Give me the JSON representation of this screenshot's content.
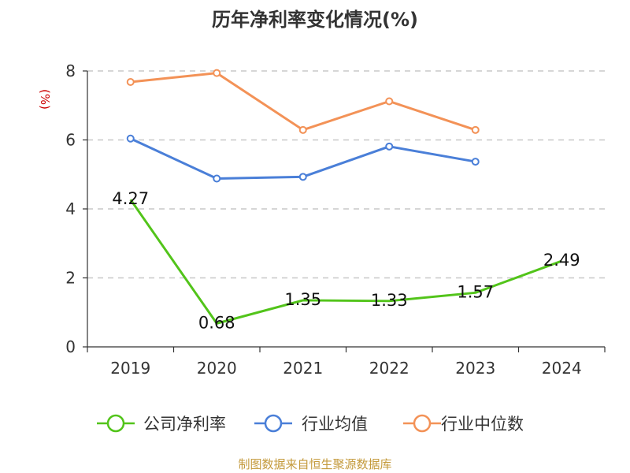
{
  "chart_data": {
    "type": "line",
    "title": "历年净利率变化情况(%)",
    "ylabel": "(%)",
    "xlabel": "",
    "ylim": [
      0,
      8
    ],
    "yticks": [
      0,
      2,
      4,
      6,
      8
    ],
    "grid": true,
    "legend_position": "bottom",
    "categories": [
      "2019",
      "2020",
      "2021",
      "2022",
      "2023",
      "2024"
    ],
    "series": [
      {
        "name": "公司净利率",
        "color": "#52c41a",
        "values": [
          4.27,
          0.68,
          1.35,
          1.33,
          1.57,
          2.49
        ],
        "labels": [
          "4.27",
          "0.68",
          "1.35",
          "1.33",
          "1.57",
          "2.49"
        ],
        "show_labels": true
      },
      {
        "name": "行业均值",
        "color": "#4a7fd8",
        "values": [
          6.04,
          4.88,
          4.93,
          5.81,
          5.37,
          null
        ],
        "show_labels": false
      },
      {
        "name": "行业中位数",
        "color": "#f39257",
        "values": [
          7.68,
          7.94,
          6.29,
          7.12,
          6.29,
          null
        ],
        "show_labels": false
      }
    ],
    "source": "制图数据来自恒生聚源数据库",
    "source_color": "#c49a3c",
    "unit_color": "#cc0000"
  }
}
